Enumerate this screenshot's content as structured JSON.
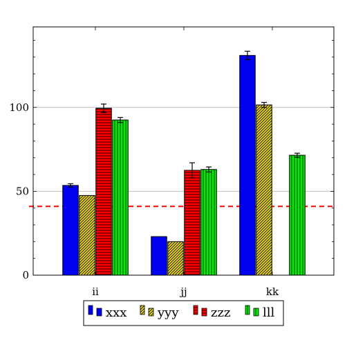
{
  "chart_data": {
    "type": "bar",
    "categories": [
      "ii",
      "jj",
      "kk"
    ],
    "series": [
      {
        "name": "xxx",
        "values": [
          53.5,
          23,
          131
        ],
        "errors": [
          1,
          0,
          2.5
        ],
        "color": "#0000ff",
        "pattern": "dots"
      },
      {
        "name": "yyy",
        "values": [
          47.5,
          20,
          101.5
        ],
        "errors": [
          0,
          0,
          1.5
        ],
        "color": "#e8d51a",
        "pattern": "diagonal"
      },
      {
        "name": "zzz",
        "values": [
          99.5,
          62.5,
          null
        ],
        "errors": [
          2.5,
          4.5,
          0
        ],
        "color": "#ff0000",
        "pattern": "horizontal"
      },
      {
        "name": "lll",
        "values": [
          92.5,
          63,
          71.5
        ],
        "errors": [
          1.5,
          1.5,
          1.2
        ],
        "color": "#00ee00",
        "pattern": "vertical"
      }
    ],
    "ylim": [
      0,
      148
    ],
    "yticks": [
      0,
      50,
      100
    ],
    "ytick_labels": [
      "0",
      "50",
      "100"
    ],
    "reference_line": {
      "value": 41,
      "color": "#ff0000",
      "style": "dashed"
    },
    "grid": "horizontal at major ticks",
    "legend_position": "bottom-center",
    "title": "",
    "xlabel": "",
    "ylabel": ""
  }
}
